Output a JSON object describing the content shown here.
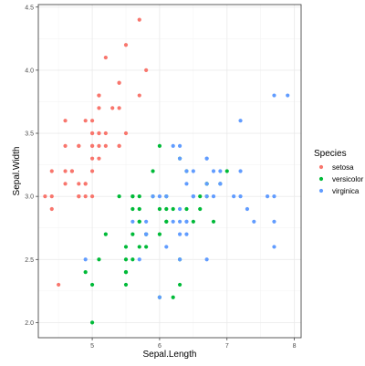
{
  "chart_data": {
    "type": "scatter",
    "xlabel": "Sepal.Length",
    "ylabel": "Sepal.Width",
    "xlim": [
      4.2,
      8.1
    ],
    "ylim": [
      1.88,
      4.52
    ],
    "x_ticks": [
      5,
      6,
      7,
      8
    ],
    "y_ticks": [
      2.0,
      2.5,
      3.0,
      3.5,
      4.0,
      4.5
    ],
    "x_tick_labels": [
      "5",
      "6",
      "7",
      "8"
    ],
    "y_tick_labels": [
      "2.0",
      "2.5",
      "3.0",
      "3.5",
      "4.0",
      "4.5"
    ],
    "grid": true,
    "legend": {
      "title": "Species",
      "position": "right"
    },
    "series": [
      {
        "name": "setosa",
        "color": "#F8766D",
        "points": [
          [
            5.1,
            3.5
          ],
          [
            4.9,
            3.0
          ],
          [
            4.7,
            3.2
          ],
          [
            4.6,
            3.1
          ],
          [
            5.0,
            3.6
          ],
          [
            5.4,
            3.9
          ],
          [
            4.6,
            3.4
          ],
          [
            5.0,
            3.4
          ],
          [
            4.4,
            2.9
          ],
          [
            4.9,
            3.1
          ],
          [
            5.4,
            3.7
          ],
          [
            4.8,
            3.4
          ],
          [
            4.8,
            3.0
          ],
          [
            4.3,
            3.0
          ],
          [
            5.8,
            4.0
          ],
          [
            5.7,
            4.4
          ],
          [
            5.4,
            3.9
          ],
          [
            5.1,
            3.5
          ],
          [
            5.7,
            3.8
          ],
          [
            5.1,
            3.8
          ],
          [
            5.4,
            3.4
          ],
          [
            5.1,
            3.7
          ],
          [
            4.6,
            3.6
          ],
          [
            5.1,
            3.3
          ],
          [
            4.8,
            3.4
          ],
          [
            5.0,
            3.0
          ],
          [
            5.0,
            3.4
          ],
          [
            5.2,
            3.5
          ],
          [
            5.2,
            3.4
          ],
          [
            4.7,
            3.2
          ],
          [
            4.8,
            3.1
          ],
          [
            5.4,
            3.4
          ],
          [
            5.2,
            4.1
          ],
          [
            5.5,
            4.2
          ],
          [
            4.9,
            3.1
          ],
          [
            5.0,
            3.2
          ],
          [
            5.5,
            3.5
          ],
          [
            4.9,
            3.6
          ],
          [
            4.4,
            3.0
          ],
          [
            5.1,
            3.4
          ],
          [
            5.0,
            3.5
          ],
          [
            4.5,
            2.3
          ],
          [
            4.4,
            3.2
          ],
          [
            5.0,
            3.5
          ],
          [
            5.1,
            3.8
          ],
          [
            4.8,
            3.0
          ],
          [
            5.1,
            3.8
          ],
          [
            4.6,
            3.2
          ],
          [
            5.3,
            3.7
          ],
          [
            5.0,
            3.3
          ]
        ]
      },
      {
        "name": "versicolor",
        "color": "#00BA38",
        "points": [
          [
            7.0,
            3.2
          ],
          [
            6.4,
            3.2
          ],
          [
            6.9,
            3.1
          ],
          [
            5.5,
            2.3
          ],
          [
            6.5,
            2.8
          ],
          [
            5.7,
            2.8
          ],
          [
            6.3,
            3.3
          ],
          [
            4.9,
            2.4
          ],
          [
            6.6,
            2.9
          ],
          [
            5.2,
            2.7
          ],
          [
            5.0,
            2.0
          ],
          [
            5.9,
            3.0
          ],
          [
            6.0,
            2.2
          ],
          [
            6.1,
            2.9
          ],
          [
            5.6,
            2.9
          ],
          [
            6.7,
            3.1
          ],
          [
            5.6,
            3.0
          ],
          [
            5.8,
            2.7
          ],
          [
            6.2,
            2.2
          ],
          [
            5.6,
            2.5
          ],
          [
            5.9,
            3.2
          ],
          [
            6.1,
            2.8
          ],
          [
            6.3,
            2.5
          ],
          [
            6.1,
            2.8
          ],
          [
            6.4,
            2.9
          ],
          [
            6.6,
            3.0
          ],
          [
            6.8,
            2.8
          ],
          [
            6.7,
            3.0
          ],
          [
            6.0,
            2.9
          ],
          [
            5.7,
            2.6
          ],
          [
            5.5,
            2.4
          ],
          [
            5.5,
            2.4
          ],
          [
            5.8,
            2.7
          ],
          [
            6.0,
            2.7
          ],
          [
            5.4,
            3.0
          ],
          [
            6.0,
            3.4
          ],
          [
            6.7,
            3.1
          ],
          [
            6.3,
            2.3
          ],
          [
            5.6,
            3.0
          ],
          [
            5.5,
            2.5
          ],
          [
            5.5,
            2.6
          ],
          [
            6.1,
            3.0
          ],
          [
            5.8,
            2.6
          ],
          [
            5.0,
            2.3
          ],
          [
            5.6,
            2.7
          ],
          [
            5.7,
            3.0
          ],
          [
            5.7,
            2.9
          ],
          [
            6.2,
            2.9
          ],
          [
            5.1,
            2.5
          ],
          [
            5.7,
            2.8
          ]
        ]
      },
      {
        "name": "virginica",
        "color": "#619CFF",
        "points": [
          [
            6.3,
            3.3
          ],
          [
            5.8,
            2.7
          ],
          [
            7.1,
            3.0
          ],
          [
            6.3,
            2.9
          ],
          [
            6.5,
            3.0
          ],
          [
            7.6,
            3.0
          ],
          [
            4.9,
            2.5
          ],
          [
            7.3,
            2.9
          ],
          [
            6.7,
            2.5
          ],
          [
            7.2,
            3.6
          ],
          [
            6.5,
            3.2
          ],
          [
            6.4,
            2.7
          ],
          [
            6.8,
            3.0
          ],
          [
            5.7,
            2.5
          ],
          [
            5.8,
            2.8
          ],
          [
            6.4,
            3.2
          ],
          [
            6.5,
            3.0
          ],
          [
            7.7,
            3.8
          ],
          [
            7.7,
            2.6
          ],
          [
            6.0,
            2.2
          ],
          [
            6.9,
            3.2
          ],
          [
            5.6,
            2.8
          ],
          [
            7.7,
            2.8
          ],
          [
            6.3,
            2.7
          ],
          [
            6.7,
            3.3
          ],
          [
            7.2,
            3.2
          ],
          [
            6.2,
            2.8
          ],
          [
            6.1,
            3.0
          ],
          [
            6.4,
            2.8
          ],
          [
            7.2,
            3.0
          ],
          [
            7.4,
            2.8
          ],
          [
            7.9,
            3.8
          ],
          [
            6.4,
            2.8
          ],
          [
            6.3,
            2.8
          ],
          [
            6.1,
            2.6
          ],
          [
            7.7,
            3.0
          ],
          [
            6.3,
            3.4
          ],
          [
            6.4,
            3.1
          ],
          [
            6.0,
            3.0
          ],
          [
            6.9,
            3.1
          ],
          [
            6.7,
            3.1
          ],
          [
            6.9,
            3.1
          ],
          [
            5.8,
            2.7
          ],
          [
            6.8,
            3.2
          ],
          [
            6.7,
            3.3
          ],
          [
            6.7,
            3.0
          ],
          [
            6.3,
            2.5
          ],
          [
            6.5,
            3.0
          ],
          [
            6.2,
            3.4
          ],
          [
            5.9,
            3.0
          ]
        ]
      }
    ]
  }
}
